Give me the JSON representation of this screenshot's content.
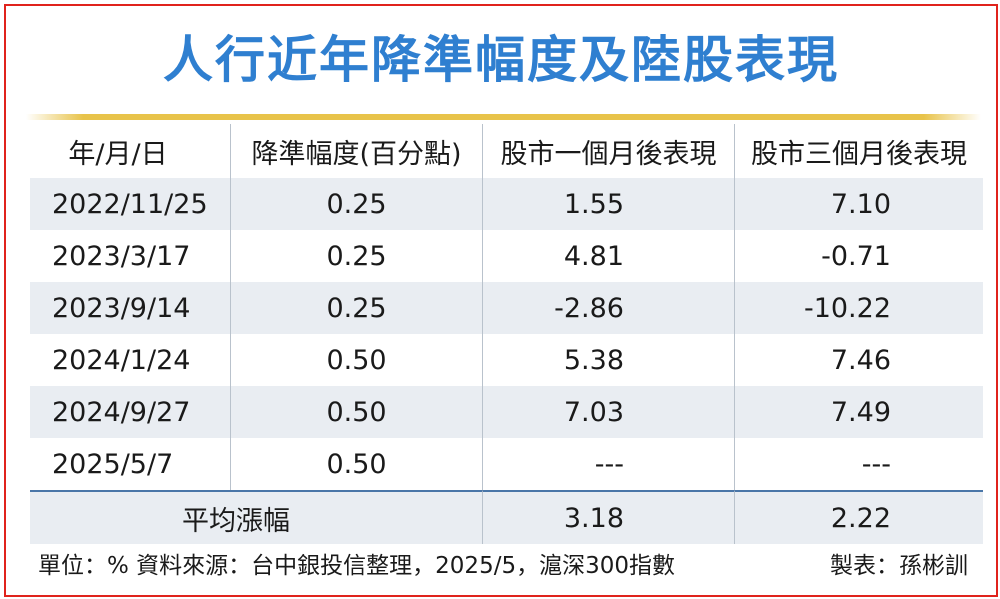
{
  "title": "人行近年降準幅度及陸股表現",
  "table": {
    "headers": [
      "年/月/日",
      "降準幅度(百分點)",
      "股市一個月後表現",
      "股市三個月後表現"
    ],
    "rows": [
      {
        "date": "2022/11/25",
        "cut": "0.25",
        "one_month": "1.55",
        "three_month": "7.10"
      },
      {
        "date": "2023/3/17",
        "cut": "0.25",
        "one_month": "4.81",
        "three_month": "-0.71"
      },
      {
        "date": "2023/9/14",
        "cut": "0.25",
        "one_month": "-2.86",
        "three_month": "-10.22"
      },
      {
        "date": "2024/1/24",
        "cut": "0.50",
        "one_month": "5.38",
        "three_month": "7.46"
      },
      {
        "date": "2024/9/27",
        "cut": "0.50",
        "one_month": "7.03",
        "three_month": "7.49"
      },
      {
        "date": "2025/5/7",
        "cut": "0.50",
        "one_month": "---",
        "three_month": "---"
      }
    ],
    "average": {
      "label": "平均漲幅",
      "one_month": "3.18",
      "three_month": "2.22"
    }
  },
  "footer": {
    "note": "單位：%  資料來源：台中銀投信整理，2025/5，滬深300指數",
    "author": "製表：孫彬訓"
  },
  "colors": {
    "title": "#2f7fd0",
    "frame": "#e0231c",
    "rule": "#e8c34a",
    "shade": "#e9edf2"
  }
}
